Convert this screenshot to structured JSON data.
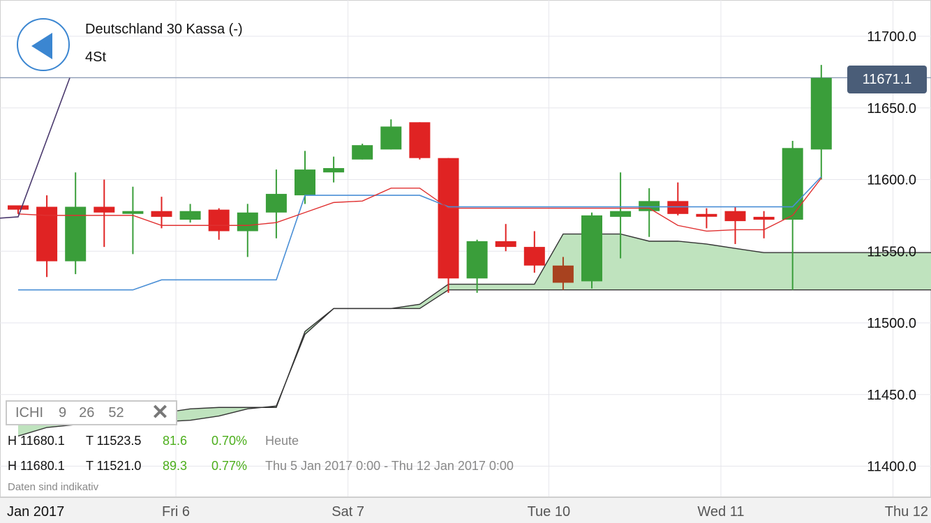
{
  "header": {
    "title": "Deutschland 30 Kassa (-)",
    "timeframe": "4St"
  },
  "indicator": {
    "name": "ICHI",
    "params": [
      "9",
      "26",
      "52"
    ]
  },
  "stats": [
    {
      "high": "H 11680.1",
      "low": "T 11523.5",
      "points": "81.6",
      "percent": "0.70%",
      "label": "Heute"
    },
    {
      "high": "H 11680.1",
      "low": "T 11521.0",
      "points": "89.3",
      "percent": "0.77%",
      "label": "Thu 5 Jan 2017 0:00 - Thu 12 Jan 2017 0:00"
    }
  ],
  "disclaimer": "Daten sind indikativ",
  "current_price": "11671.1",
  "colors": {
    "up": "#3a9e3a",
    "down": "#e02323",
    "last_down": "#a8421f",
    "tenkan": "#e03030",
    "kijun": "#4a8fd6",
    "chikou": "#4b3a6e",
    "cloud_fill": "#bfe3be",
    "cloud_line": "#333333",
    "price_line": "#8d9cb5",
    "price_tag": "#4a5d78",
    "back_button": "#3b86d1",
    "positive_text": "#4cae1c"
  },
  "chart_data": {
    "type": "candlestick",
    "instrument": "Deutschland 30 Kassa (-)",
    "interval": "4St",
    "y_ticks": [
      "11700.0",
      "11650.0",
      "11600.0",
      "11550.0",
      "11500.0",
      "11450.0",
      "11400.0"
    ],
    "ylim": [
      11380,
      11720
    ],
    "x_tick_labels": [
      {
        "label": "Jan 2017",
        "index": -0.5
      },
      {
        "label": "Fri 6",
        "index": 5.5
      },
      {
        "label": "Sat 7",
        "index": 11.5
      },
      {
        "label": "Tue 10",
        "index": 18.5
      },
      {
        "label": "Wed 11",
        "index": 24.5
      },
      {
        "label": "Thu 12",
        "index": 30.5
      }
    ],
    "candles": [
      {
        "o": 11582,
        "h": 11582,
        "l": 11576,
        "c": 11579
      },
      {
        "o": 11581,
        "h": 11589,
        "l": 11532,
        "c": 11543
      },
      {
        "o": 11543,
        "h": 11605,
        "l": 11534,
        "c": 11581
      },
      {
        "o": 11581,
        "h": 11600,
        "l": 11553,
        "c": 11577
      },
      {
        "o": 11577,
        "h": 11595,
        "l": 11548,
        "c": 11578
      },
      {
        "o": 11578,
        "h": 11588,
        "l": 11566,
        "c": 11574
      },
      {
        "o": 11572,
        "h": 11583,
        "l": 11570,
        "c": 11578
      },
      {
        "o": 11579,
        "h": 11580,
        "l": 11558,
        "c": 11564
      },
      {
        "o": 11564,
        "h": 11583,
        "l": 11546,
        "c": 11577
      },
      {
        "o": 11577,
        "h": 11607,
        "l": 11559,
        "c": 11590
      },
      {
        "o": 11589,
        "h": 11620,
        "l": 11583,
        "c": 11607
      },
      {
        "o": 11605,
        "h": 11616,
        "l": 11598,
        "c": 11608
      },
      {
        "o": 11614,
        "h": 11625,
        "l": 11614,
        "c": 11624
      },
      {
        "o": 11621,
        "h": 11642,
        "l": 11621,
        "c": 11637
      },
      {
        "o": 11640,
        "h": 11640,
        "l": 11614,
        "c": 11615
      },
      {
        "o": 11615,
        "h": 11615,
        "l": 11521,
        "c": 11531
      },
      {
        "o": 11531,
        "h": 11558,
        "l": 11521,
        "c": 11557
      },
      {
        "o": 11557,
        "h": 11569,
        "l": 11550,
        "c": 11553
      },
      {
        "o": 11553,
        "h": 11564,
        "l": 11535,
        "c": 11540
      },
      {
        "o": 11540,
        "h": 11546,
        "l": 11523,
        "c": 11528
      },
      {
        "o": 11529,
        "h": 11577,
        "l": 11524,
        "c": 11575
      },
      {
        "o": 11574,
        "h": 11605,
        "l": 11545,
        "c": 11578
      },
      {
        "o": 11578,
        "h": 11594,
        "l": 11560,
        "c": 11585
      },
      {
        "o": 11585,
        "h": 11598,
        "l": 11575,
        "c": 11576
      },
      {
        "o": 11576,
        "h": 11580,
        "l": 11566,
        "c": 11575
      },
      {
        "o": 11578,
        "h": 11581,
        "l": 11555,
        "c": 11571
      },
      {
        "o": 11574,
        "h": 11578,
        "l": 11559,
        "c": 11572
      },
      {
        "o": 11572,
        "h": 11627,
        "l": 11523,
        "c": 11622
      },
      {
        "o": 11621,
        "h": 11680,
        "l": 11600,
        "c": 11671
      }
    ],
    "tenkan": [
      11576,
      11575,
      11575,
      11575,
      11575,
      11568,
      11568,
      11568,
      11568,
      11570,
      11577,
      11584,
      11585,
      11594,
      11594,
      11580,
      11580,
      11580,
      11580,
      11580,
      11580,
      11580,
      11580,
      11568,
      11564,
      11565,
      11565,
      11575,
      11601
    ],
    "kijun": [
      11523,
      11523,
      11523,
      11523,
      11523,
      11530,
      11530,
      11530,
      11530,
      11530,
      11589,
      11589,
      11589,
      11589,
      11589,
      11581,
      11581,
      11581,
      11581,
      11581,
      11581,
      11581,
      11581,
      11581,
      11581,
      11581,
      11581,
      11581,
      11602
    ],
    "chikou": [
      {
        "i": -0.7,
        "v": 11573
      },
      {
        "i": 0,
        "v": 11574
      },
      {
        "i": 1.8,
        "v": 11671
      }
    ],
    "cloud_span_a": [
      11445,
      11443,
      11441,
      11439,
      11437,
      11437,
      11440,
      11441,
      11441,
      11441,
      11494,
      11510,
      11510,
      11510,
      11513,
      11527,
      11527,
      11527,
      11527,
      11562,
      11562,
      11562,
      11557,
      11557,
      11555,
      11552,
      11549,
      11549,
      11549,
      11549,
      11549,
      11549,
      11549
    ],
    "cloud_span_b": [
      11421,
      11427,
      11429,
      11430,
      11431,
      11431,
      11432,
      11435,
      11440,
      11442,
      11492,
      11510,
      11510,
      11510,
      11510,
      11523,
      11523,
      11523,
      11523,
      11523,
      11523,
      11523,
      11523,
      11523,
      11523,
      11523,
      11523,
      11523,
      11523,
      11523,
      11523,
      11523,
      11523
    ],
    "current_price": 11671.1
  }
}
